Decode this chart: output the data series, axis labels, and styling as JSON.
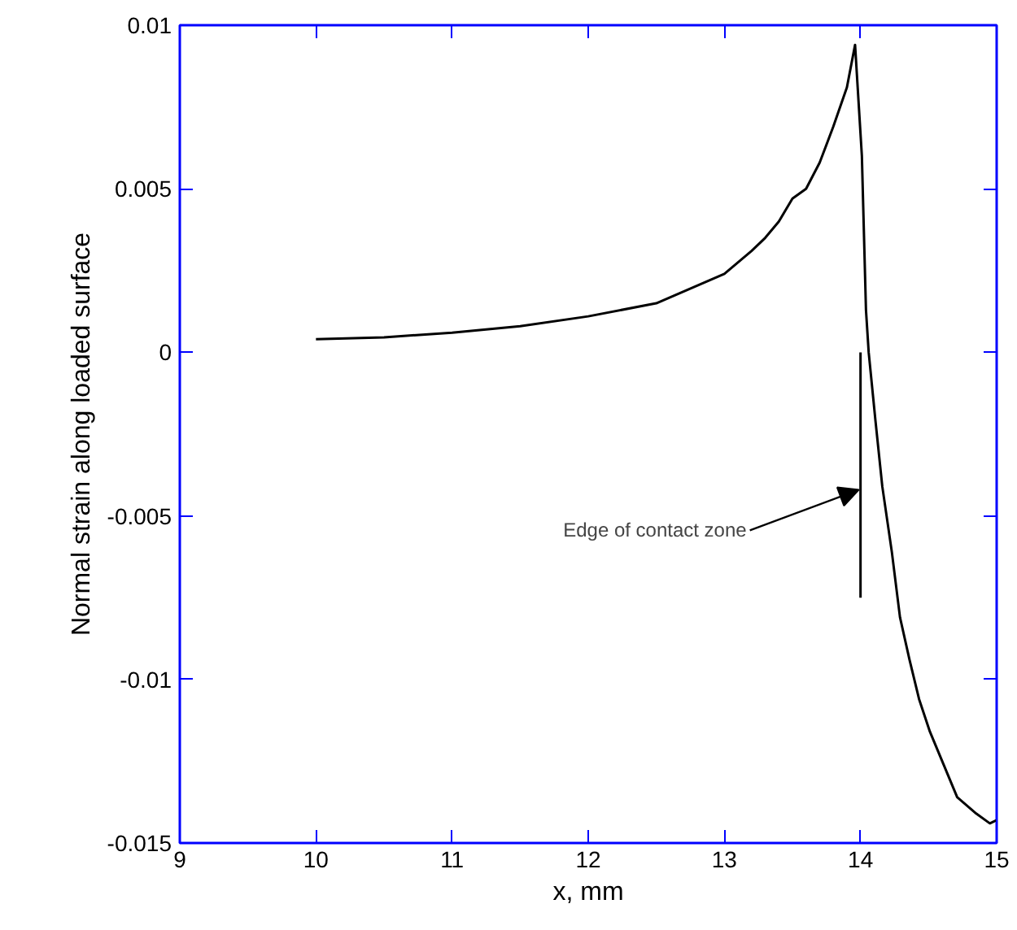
{
  "chart_data": {
    "type": "line",
    "xlabel": "x, mm",
    "ylabel": "Normal strain along loaded surface",
    "xlim": [
      9,
      15
    ],
    "ylim": [
      -0.015,
      0.01
    ],
    "xticks": [
      9,
      10,
      11,
      12,
      13,
      14,
      15
    ],
    "yticks": [
      -0.015,
      -0.01,
      -0.005,
      0,
      0.005,
      0.01
    ],
    "grid": false,
    "marker": "none",
    "line_style": "solid",
    "series": [
      {
        "color": "#000000",
        "x": [
          10,
          10.5,
          11,
          11.5,
          12,
          12.5,
          13,
          13.2,
          13.3,
          13.4,
          13.5,
          13.6,
          13.7,
          13.8,
          13.9,
          13.96,
          14.01,
          14.04,
          14.06,
          14.11,
          14.16,
          14.23,
          14.29,
          14.36,
          14.43,
          14.51,
          14.61,
          14.71,
          14.85,
          14.95,
          15
        ],
        "values": [
          0.0004,
          0.00046,
          0.0006,
          0.0008,
          0.0011,
          0.0015,
          0.0024,
          0.0031,
          0.0035,
          0.004,
          0.0047,
          0.005,
          0.0058,
          0.0069,
          0.0081,
          0.0094,
          0.006,
          0.0013,
          0,
          -0.0021,
          -0.0041,
          -0.0061,
          -0.0081,
          -0.0094,
          -0.0106,
          -0.0116,
          -0.0126,
          -0.0136,
          -0.0141,
          -0.0144,
          -0.0143
        ]
      },
      {
        "color": "#000000",
        "x": [
          14,
          14
        ],
        "values": [
          0,
          -0.0075
        ]
      }
    ],
    "annotations": [
      {
        "text": "Edge of contact zone",
        "x": 14,
        "y": -0.0042
      }
    ]
  }
}
